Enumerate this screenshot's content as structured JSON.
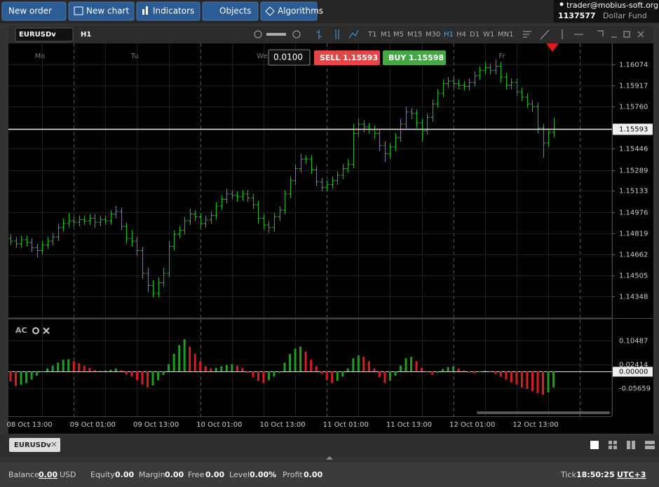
{
  "toolbar": {
    "buttons": [
      "New order",
      "New chart",
      "Indicators",
      "Objects",
      "Algorithms"
    ]
  },
  "account": {
    "email": "trader@mobius-soft.org",
    "number": "1137577",
    "name": "Dollar Fund"
  },
  "chart_window": {
    "symbol": "EURUSDv",
    "timeframe": "H1",
    "timeframes": [
      "T1",
      "M1",
      "M5",
      "M15",
      "M30",
      "H1",
      "H4",
      "D1",
      "W1",
      "MN1"
    ],
    "day_labels": [
      "Mo",
      "Tu",
      "We",
      "Fr"
    ],
    "lot": "0.0100",
    "sell_label": "SELL",
    "buy_label": "BUY",
    "buy_price": 1.15598,
    "indicator_label": "AC"
  },
  "chart_data": [
    {
      "type": "ohlc",
      "color": "#25b825",
      "grid": true,
      "bid_line": 1.15593,
      "ylim": [
        1.14192,
        1.1623
      ],
      "yticks": [
        1.14348,
        1.14505,
        1.14662,
        1.14819,
        1.14976,
        1.15133,
        1.15289,
        1.15446,
        {
          "value": 1.1576,
          "label": "1.15760"
        },
        1.15917,
        1.16074
      ],
      "open": [
        1.1478,
        1.1476,
        1.1474,
        1.1477,
        1.1475,
        1.1471,
        1.1469,
        1.1473,
        1.1476,
        1.1479,
        1.1486,
        1.1489,
        1.1491,
        1.149,
        1.1492,
        1.1491,
        1.1493,
        1.149,
        1.1492,
        1.1491,
        1.1496,
        1.1498,
        1.1487,
        1.1478,
        1.1476,
        1.1469,
        1.1452,
        1.1443,
        1.1437,
        1.1445,
        1.1452,
        1.1472,
        1.1481,
        1.1484,
        1.1491,
        1.1496,
        1.1494,
        1.1489,
        1.1492,
        1.1495,
        1.1502,
        1.1507,
        1.1511,
        1.151,
        1.1509,
        1.1511,
        1.1508,
        1.1503,
        1.1493,
        1.1488,
        1.1486,
        1.1494,
        1.1499,
        1.1511,
        1.1521,
        1.153,
        1.1537,
        1.1537,
        1.1529,
        1.152,
        1.1516,
        1.1518,
        1.1521,
        1.1525,
        1.153,
        1.1533,
        1.1556,
        1.1563,
        1.1561,
        1.1559,
        1.1556,
        1.1547,
        1.1541,
        1.1546,
        1.1553,
        1.1563,
        1.1572,
        1.1571,
        1.1564,
        1.1558,
        1.1568,
        1.1578,
        1.1586,
        1.1593,
        1.1595,
        1.1593,
        1.1592,
        1.1591,
        1.1594,
        1.1599,
        1.1603,
        1.1605,
        1.1603,
        1.1606,
        1.1598,
        1.1592,
        1.1594,
        1.1587,
        1.1583,
        1.1578,
        1.1576,
        1.156,
        1.1549,
        1.1557
      ],
      "high": [
        1.1481,
        1.1479,
        1.148,
        1.148,
        1.1478,
        1.1474,
        1.1476,
        1.1479,
        1.1482,
        1.1489,
        1.1493,
        1.1497,
        1.1494,
        1.1495,
        1.1495,
        1.1496,
        1.1496,
        1.1495,
        1.1495,
        1.1499,
        1.1502,
        1.1501,
        1.149,
        1.1484,
        1.1479,
        1.1472,
        1.1456,
        1.1447,
        1.1449,
        1.1456,
        1.1476,
        1.1484,
        1.1487,
        1.1494,
        1.15,
        1.1499,
        1.1497,
        1.1495,
        1.1498,
        1.1505,
        1.151,
        1.1515,
        1.1514,
        1.1513,
        1.1514,
        1.1514,
        1.1511,
        1.1506,
        1.1496,
        1.1491,
        1.1497,
        1.1502,
        1.1514,
        1.1524,
        1.1533,
        1.1541,
        1.154,
        1.154,
        1.1532,
        1.1523,
        1.1521,
        1.1524,
        1.1528,
        1.1533,
        1.1537,
        1.1563,
        1.1567,
        1.1566,
        1.1564,
        1.1562,
        1.1559,
        1.155,
        1.1549,
        1.1556,
        1.1567,
        1.1576,
        1.1575,
        1.1574,
        1.1567,
        1.1571,
        1.1581,
        1.1589,
        1.1596,
        1.1598,
        1.1598,
        1.1596,
        1.1595,
        1.1597,
        1.1602,
        1.1606,
        1.1609,
        1.1608,
        1.1611,
        1.1609,
        1.1601,
        1.1597,
        1.1597,
        1.159,
        1.1586,
        1.1581,
        1.1579,
        1.1563,
        1.156,
        1.1568
      ],
      "low": [
        1.1473,
        1.1471,
        1.1471,
        1.1472,
        1.1468,
        1.1464,
        1.1466,
        1.147,
        1.1473,
        1.1476,
        1.1483,
        1.1486,
        1.1487,
        1.1487,
        1.1488,
        1.1488,
        1.1486,
        1.1487,
        1.1488,
        1.1488,
        1.1493,
        1.1484,
        1.1474,
        1.1472,
        1.1465,
        1.1448,
        1.1438,
        1.1434,
        1.1434,
        1.1442,
        1.1449,
        1.1469,
        1.1478,
        1.1481,
        1.1488,
        1.1491,
        1.1486,
        1.1486,
        1.1489,
        1.1492,
        1.1499,
        1.1504,
        1.1507,
        1.1505,
        1.1506,
        1.1505,
        1.15,
        1.1489,
        1.1484,
        1.1482,
        1.1483,
        1.1491,
        1.1496,
        1.1508,
        1.1518,
        1.1527,
        1.1533,
        1.1526,
        1.1517,
        1.1513,
        1.1513,
        1.1515,
        1.1518,
        1.1522,
        1.1527,
        1.153,
        1.1553,
        1.1557,
        1.1556,
        1.1552,
        1.1543,
        1.1535,
        1.1537,
        1.1543,
        1.155,
        1.156,
        1.1567,
        1.156,
        1.155,
        1.1555,
        1.1565,
        1.1575,
        1.1583,
        1.159,
        1.159,
        1.1589,
        1.1588,
        1.1588,
        1.1591,
        1.1596,
        1.16,
        1.16,
        1.16,
        1.1594,
        1.1589,
        1.1589,
        1.1584,
        1.158,
        1.1575,
        1.1572,
        1.1556,
        1.1538,
        1.1546,
        1.1553
      ],
      "close": [
        1.1476,
        1.1474,
        1.1477,
        1.1475,
        1.1471,
        1.1469,
        1.1473,
        1.1476,
        1.1479,
        1.1486,
        1.1489,
        1.1491,
        1.149,
        1.1492,
        1.1491,
        1.1493,
        1.149,
        1.1492,
        1.1491,
        1.1496,
        1.1498,
        1.1487,
        1.1478,
        1.1476,
        1.1469,
        1.1452,
        1.1443,
        1.1437,
        1.1445,
        1.1452,
        1.1472,
        1.1481,
        1.1484,
        1.1491,
        1.1496,
        1.1494,
        1.1489,
        1.1492,
        1.1495,
        1.1502,
        1.1507,
        1.1511,
        1.151,
        1.1509,
        1.1511,
        1.1508,
        1.1503,
        1.1493,
        1.1488,
        1.1486,
        1.1494,
        1.1499,
        1.1511,
        1.1521,
        1.153,
        1.1537,
        1.1537,
        1.1529,
        1.152,
        1.1516,
        1.1518,
        1.1521,
        1.1525,
        1.153,
        1.1533,
        1.1556,
        1.1563,
        1.1561,
        1.1559,
        1.1556,
        1.1547,
        1.1541,
        1.1546,
        1.1553,
        1.1563,
        1.1572,
        1.1571,
        1.1564,
        1.1558,
        1.1568,
        1.1578,
        1.1586,
        1.1593,
        1.1595,
        1.1593,
        1.1592,
        1.1591,
        1.1594,
        1.1599,
        1.1603,
        1.1605,
        1.1603,
        1.1606,
        1.1598,
        1.1592,
        1.1594,
        1.1587,
        1.1583,
        1.1578,
        1.1576,
        1.156,
        1.1549,
        1.1557,
        1.15593
      ]
    },
    {
      "type": "histogram",
      "up_color": "#1f9e1f",
      "down_color": "#d42020",
      "ylim": [
        -0.1513,
        0.1659
      ],
      "yticks": [
        0.10487,
        0.02414,
        {
          "value": 0,
          "label": "0.00000"
        },
        -0.05659
      ],
      "categories": [
        null,
        null,
        null,
        null,
        "08 Oct 13:00",
        null,
        null,
        null,
        null,
        null,
        null,
        null,
        null,
        null,
        null,
        null,
        "09 Oct 01:00",
        null,
        null,
        null,
        null,
        null,
        null,
        null,
        null,
        null,
        null,
        null,
        "09 Oct 13:00",
        null,
        null,
        null,
        null,
        null,
        null,
        null,
        null,
        null,
        null,
        null,
        "10 Oct 01:00",
        null,
        null,
        null,
        null,
        null,
        null,
        null,
        null,
        null,
        null,
        null,
        "10 Oct 13:00",
        null,
        null,
        null,
        null,
        null,
        null,
        null,
        null,
        null,
        null,
        null,
        "11 Oct 01:00",
        null,
        null,
        null,
        null,
        null,
        null,
        null,
        null,
        null,
        null,
        null,
        "11 Oct 13:00",
        null,
        null,
        null,
        null,
        null,
        null,
        null,
        null,
        null,
        null,
        null,
        "12 Oct 01:00",
        null,
        null,
        null,
        null,
        null,
        null,
        null,
        null,
        null,
        null,
        null,
        "12 Oct 13:00",
        null,
        null,
        null
      ],
      "values": [
        -0.035,
        -0.05,
        -0.046,
        -0.04,
        -0.028,
        -0.015,
        0,
        0.01,
        0.02,
        0.03,
        0.04,
        0.042,
        0.035,
        0.028,
        0.02,
        0.012,
        0.005,
        0.002,
        0.003,
        0.006,
        0.01,
        0.004,
        -0.01,
        -0.018,
        -0.03,
        -0.045,
        -0.055,
        -0.048,
        -0.03,
        -0.012,
        0.025,
        0.06,
        0.09,
        0.11,
        0.085,
        0.06,
        0.035,
        0.018,
        0.01,
        0.012,
        0.018,
        0.022,
        0.025,
        0.02,
        0.012,
        -0.005,
        -0.02,
        -0.032,
        -0.04,
        -0.03,
        -0.018,
        -0.005,
        0.03,
        0.06,
        0.078,
        0.085,
        0.068,
        0.04,
        0.018,
        -0.008,
        -0.03,
        -0.04,
        -0.032,
        -0.018,
        0.01,
        0.045,
        0.055,
        0.05,
        0.035,
        0.01,
        -0.02,
        -0.04,
        -0.032,
        -0.015,
        0.02,
        0.045,
        0.05,
        0.035,
        0.012,
        0,
        -0.012,
        -0.005,
        0.008,
        0.015,
        0.018,
        0.01,
        0.003,
        -0.004,
        -0.006,
        -0.002,
        0.002,
        0,
        -0.008,
        -0.018,
        -0.028,
        -0.038,
        -0.045,
        -0.055,
        -0.06,
        -0.068,
        -0.075,
        -0.08,
        -0.072,
        -0.055
      ]
    }
  ],
  "tabs": [
    "EURUSDv"
  ],
  "status": {
    "balance_label": "Balance",
    "balance": "0.00",
    "currency": "USD",
    "equity_label": "Equity",
    "equity": "0.00",
    "margin_label": "Margin",
    "margin": "0.00",
    "free_label": "Free",
    "free": "0.00",
    "level_label": "Level",
    "level": "0.00%",
    "profit_label": "Profit",
    "profit": "0.00",
    "tick_label": "Tick",
    "tick": "18:50:25",
    "timezone": "UTC+3"
  }
}
